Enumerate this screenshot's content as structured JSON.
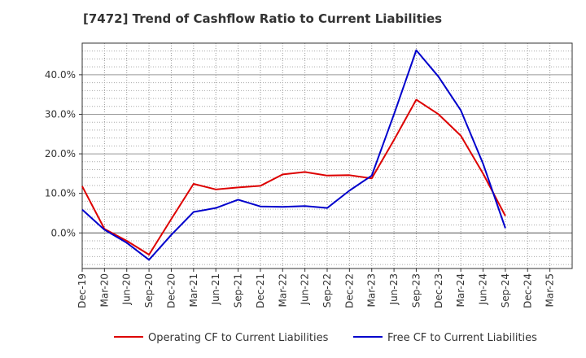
{
  "chart_data": {
    "type": "line",
    "title": "[7472]  Trend of Cashflow Ratio to Current Liabilities",
    "xlabel": "",
    "ylabel": "",
    "categories": [
      "Dec-19",
      "Mar-20",
      "Jun-20",
      "Sep-20",
      "Dec-20",
      "Mar-21",
      "Jun-21",
      "Sep-21",
      "Dec-21",
      "Mar-22",
      "Jun-22",
      "Sep-22",
      "Dec-22",
      "Mar-23",
      "Jun-23",
      "Sep-23",
      "Dec-23",
      "Mar-24",
      "Jun-24",
      "Sep-24",
      "Dec-24",
      "Mar-25"
    ],
    "yticks": [
      0,
      10,
      20,
      30,
      40
    ],
    "ytick_labels": [
      "0.0%",
      "10.0%",
      "20.0%",
      "30.0%",
      "40.0%"
    ],
    "ylim": [
      -9,
      48
    ],
    "grid": true,
    "legend_position": "bottom",
    "series": [
      {
        "name": "Operating CF to Current Liabilities",
        "color": "#dd0000",
        "values": [
          11.8,
          1.0,
          -2.0,
          -5.5,
          3.5,
          12.4,
          11.0,
          11.5,
          11.9,
          14.8,
          15.4,
          14.5,
          14.6,
          13.8,
          23.5,
          33.7,
          30.0,
          24.6,
          15.0,
          4.3,
          null,
          null
        ]
      },
      {
        "name": "Free CF to Current Liabilities",
        "color": "#0000cc",
        "values": [
          5.9,
          0.8,
          -2.5,
          -6.8,
          -0.5,
          5.3,
          6.3,
          8.4,
          6.7,
          6.6,
          6.8,
          6.3,
          10.7,
          14.5,
          30.0,
          46.2,
          39.5,
          31.0,
          17.5,
          1.2,
          null,
          null
        ]
      }
    ]
  }
}
